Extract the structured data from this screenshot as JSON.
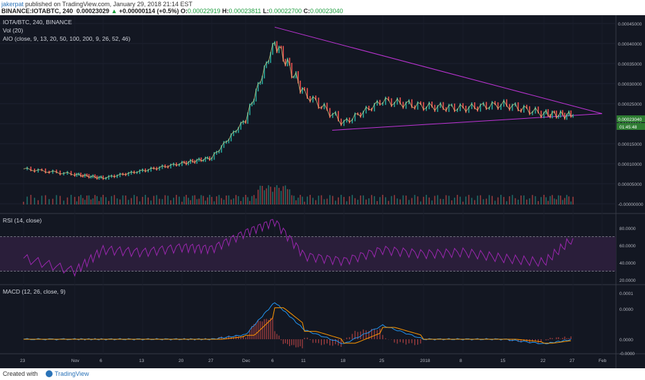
{
  "header": {
    "user": "jakerpat",
    "published_text": " published on TradingView.com, January 29, 2018 21:14 EST",
    "symbol_line": "BINANCE:IOTABTC, 240",
    "last_price": "0.00023029",
    "change": "+0.00000114 (+0.5%)",
    "o_label": "O:",
    "o": "0.00022919",
    "h_label": "H:",
    "h": "0.00023811",
    "l_label": "L:",
    "l": "0.00022700",
    "c_label": "C:",
    "c": "0.00023040"
  },
  "legend": {
    "title": "IOTA/BTC, 240, BINANCE",
    "vol": "Vol (20)",
    "aio": "AIO (close, 9, 13, 20, 50, 100, 200, 9, 26, 52, 46)",
    "rsi": "RSI (14, close)",
    "macd": "MACD (12, 26, close, 9)"
  },
  "price_axis": [
    "0.00045000",
    "0.00040000",
    "0.00035000",
    "0.00030000",
    "0.00025000",
    "0.00020000",
    "0.00015000",
    "0.00010000",
    "0.00005000",
    "-0.00000000"
  ],
  "price_tag": "0.00023040",
  "time_tag": "01:45:48",
  "rsi_axis": [
    "80.0000",
    "60.0000",
    "40.0000",
    "20.0000"
  ],
  "macd_axis": [
    "0.0001",
    "0.0000",
    "0.0000",
    "-0.0000"
  ],
  "time_axis": [
    "23",
    "Nov",
    "6",
    "13",
    "20",
    "27",
    "Dec",
    "6",
    "11",
    "18",
    "25",
    "2018",
    "8",
    "15",
    "22",
    "27",
    "Feb"
  ],
  "footer": {
    "created": "Created with",
    "brand": "TradingView"
  },
  "colors": {
    "background": "#131722",
    "up": "#26a69a",
    "down": "#ef5350",
    "trendline": "#c034d8",
    "rsi": "#9c27b0",
    "macd": "#2196f3",
    "signal": "#ff9800"
  },
  "chart_data": [
    {
      "type": "line",
      "title": "IOTA/BTC, 240, BINANCE",
      "ylabel": "",
      "ylim": [
        -1e-05,
        0.00048
      ],
      "x": [
        "23",
        "Nov",
        "6",
        "13",
        "20",
        "27",
        "Dec",
        "6",
        "11",
        "18",
        "25",
        "2018",
        "8",
        "15",
        "22",
        "27"
      ],
      "series": [
        {
          "values": [
            8.5e-05,
            7e-05,
            6e-05,
            8e-05,
            0.0001,
            0.000115,
            0.00022,
            0.00043,
            0.00029,
            0.00021,
            0.00027,
            0.000255,
            0.00025,
            0.00026,
            0.000235,
            0.00023
          ]
        }
      ],
      "trendlines": [
        {
          "from": [
            "Dec 6",
            0.00047
          ],
          "to": [
            "Feb",
            0.000235
          ]
        },
        {
          "from": [
            "Dec 17",
            0.00019
          ],
          "to": [
            "Feb",
            0.000235
          ]
        }
      ]
    },
    {
      "type": "line",
      "title": "RSI (14, close)",
      "ylim": [
        10,
        90
      ],
      "bands": [
        30,
        70
      ],
      "x": [
        "23",
        "Nov",
        "6",
        "13",
        "20",
        "27",
        "Dec",
        "6",
        "11",
        "18",
        "25",
        "2018",
        "8",
        "15",
        "22",
        "27"
      ],
      "values": [
        45,
        30,
        55,
        52,
        58,
        56,
        75,
        88,
        48,
        42,
        55,
        50,
        52,
        45,
        40,
        68
      ]
    },
    {
      "type": "line",
      "title": "MACD (12, 26, close, 9)",
      "x": [
        "23",
        "Nov",
        "6",
        "13",
        "20",
        "27",
        "Dec",
        "6",
        "11",
        "18",
        "25",
        "2018",
        "8",
        "15",
        "22",
        "27"
      ],
      "series": [
        {
          "values": [
            0.0,
            0.0,
            0.0,
            0.0,
            0.0,
            0.0,
            1e-05,
            8e-05,
            2e-05,
            -1e-05,
            3e-05,
            0.0,
            0.0,
            0.0,
            -1e-05,
            0.0
          ]
        }
      ]
    }
  ]
}
